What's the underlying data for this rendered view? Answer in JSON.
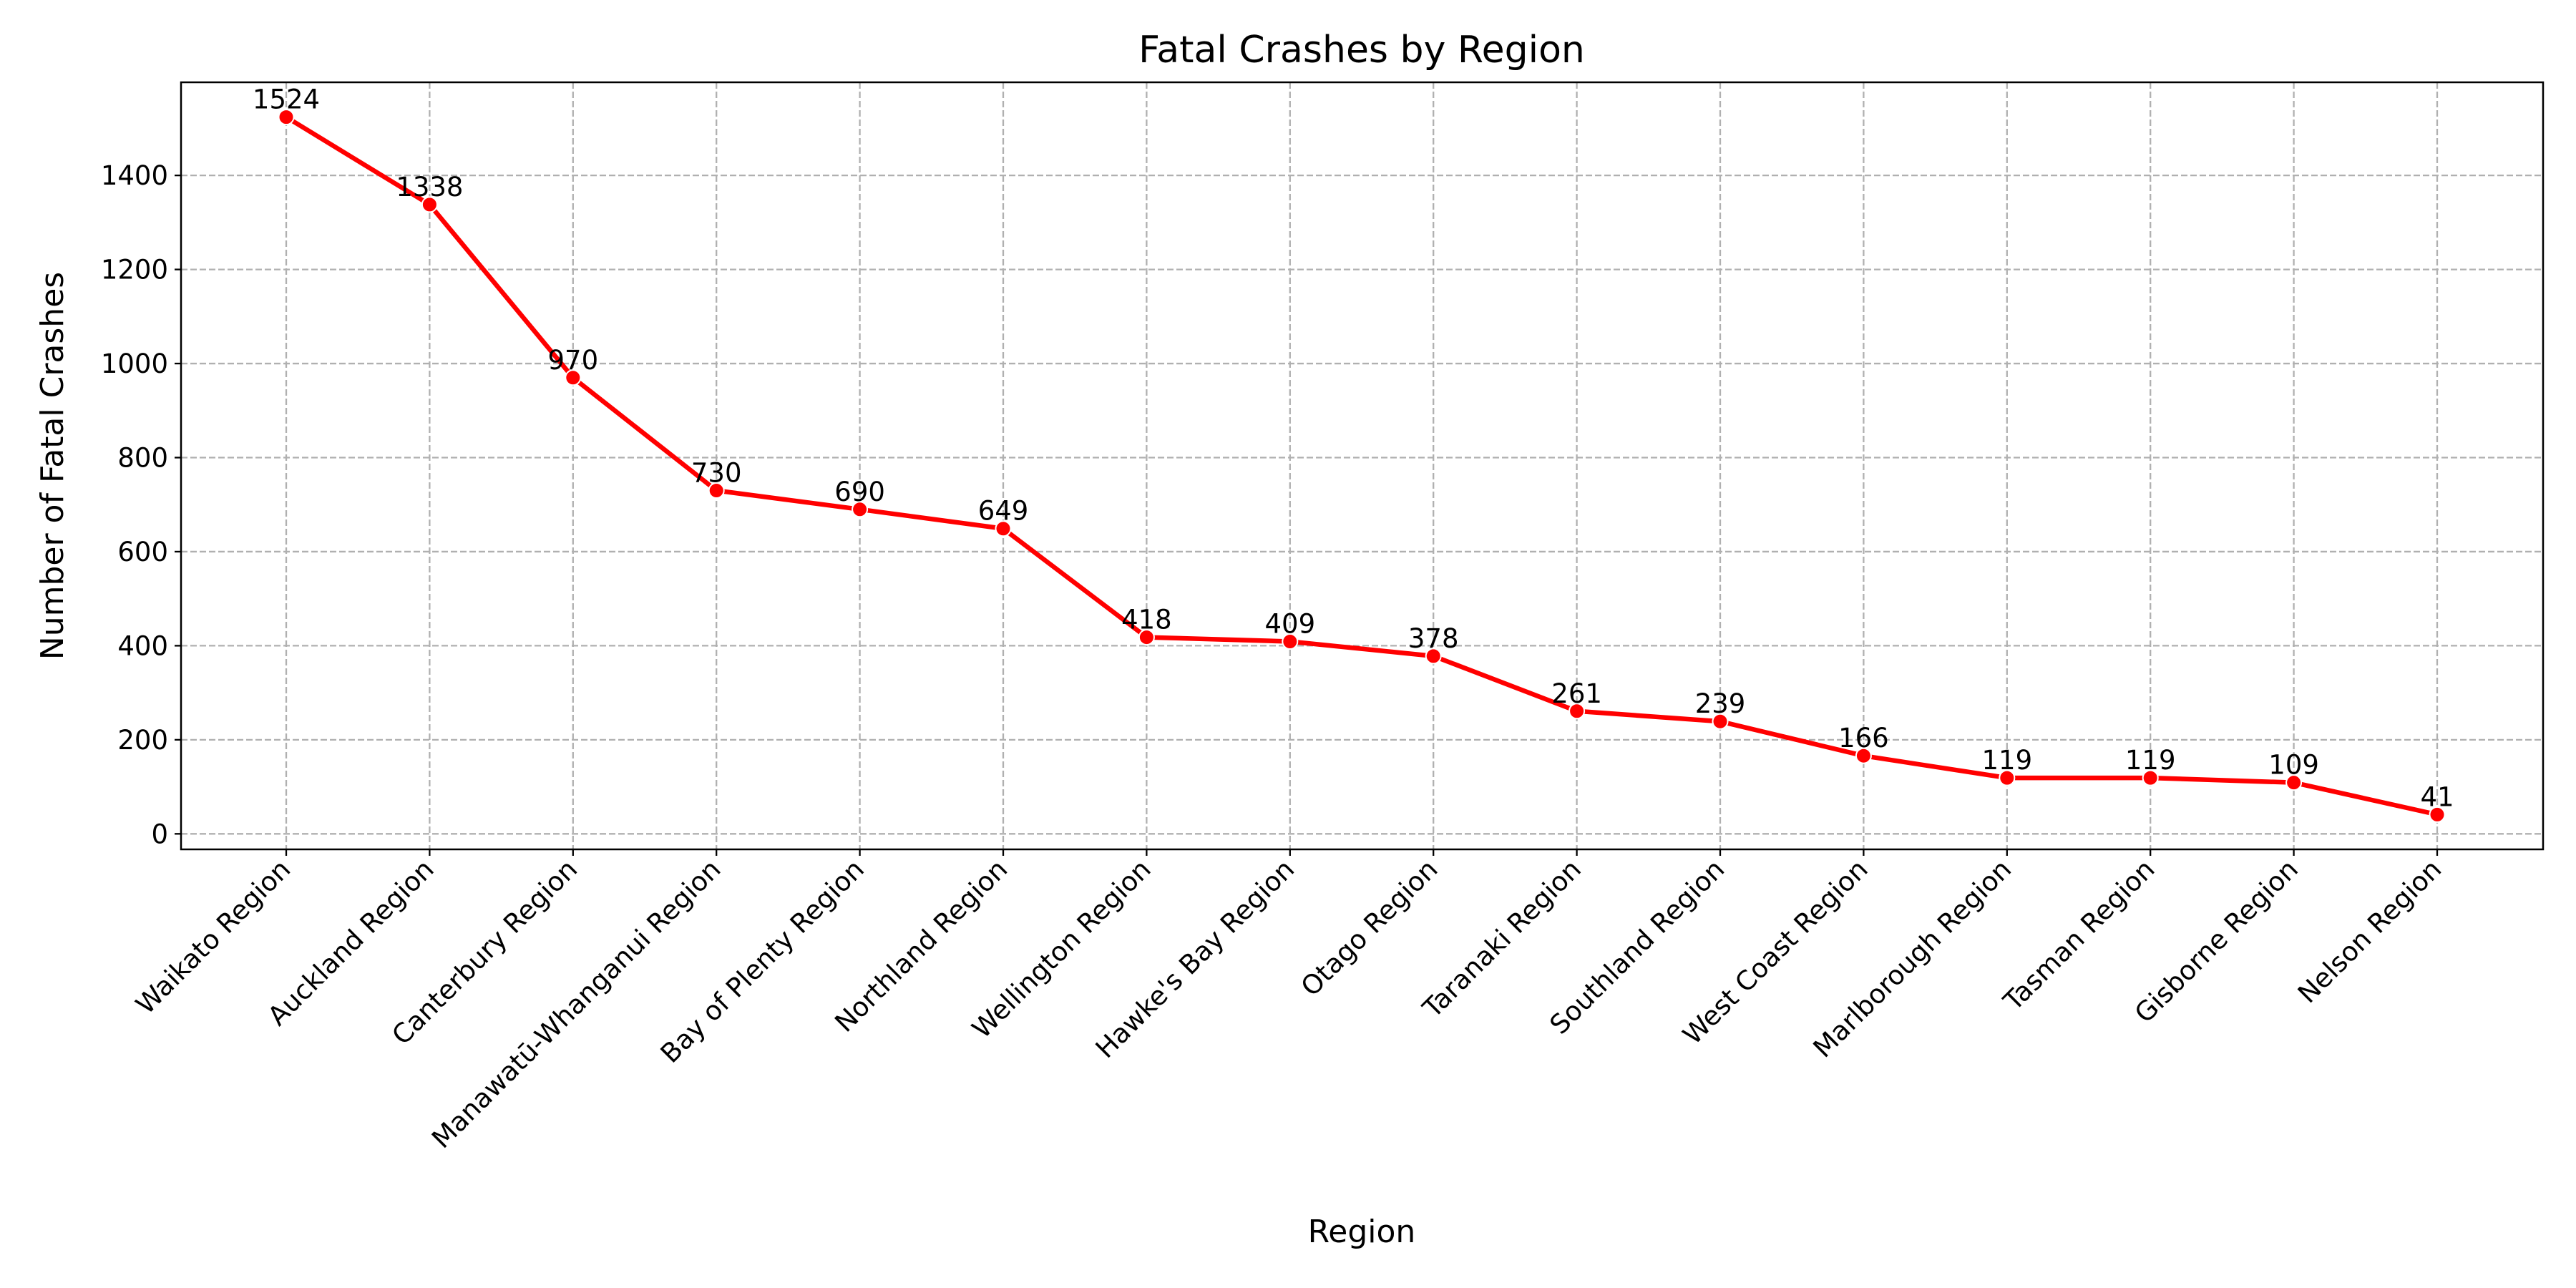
{
  "chart_data": {
    "type": "line",
    "title": "Fatal Crashes by Region",
    "xlabel": "Region",
    "ylabel": "Number of Fatal Crashes",
    "categories": [
      "Waikato Region",
      "Auckland Region",
      "Canterbury Region",
      "Manawatū-Whanganui Region",
      "Bay of Plenty Region",
      "Northland Region",
      "Wellington Region",
      "Hawke's Bay Region",
      "Otago Region",
      "Taranaki Region",
      "Southland Region",
      "West Coast Region",
      "Marlborough Region",
      "Tasman Region",
      "Gisborne Region",
      "Nelson Region"
    ],
    "values": [
      1524,
      1338,
      970,
      730,
      690,
      649,
      418,
      409,
      378,
      261,
      239,
      166,
      119,
      119,
      109,
      41
    ],
    "yticks": [
      0,
      200,
      400,
      600,
      800,
      1000,
      1200,
      1400
    ],
    "ylim": [
      -33,
      1598
    ],
    "grid": true,
    "line_color": "#ff0000",
    "grid_color": "#b0b0b0",
    "marker": "circle",
    "data_labels": true
  }
}
